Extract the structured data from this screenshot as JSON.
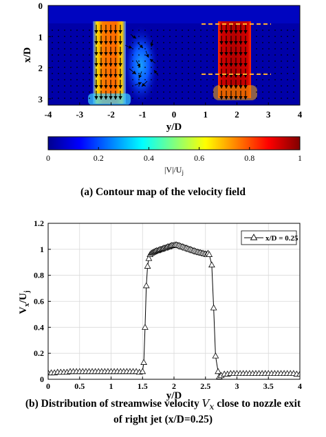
{
  "colors": {
    "jet_colormap": [
      "#00008f",
      "#0000ff",
      "#0080ff",
      "#00ffff",
      "#80ff80",
      "#ffff00",
      "#ff8000",
      "#ff0000",
      "#800000"
    ],
    "annotation_lines": "#ffb030",
    "series_line": "#000000"
  },
  "icons": {
    "series_marker": "triangle-marker-icon"
  },
  "chart_data": [
    {
      "type": "heatmap",
      "title": "",
      "xlabel": "y/D",
      "ylabel": "x/D",
      "xlim": [
        -4,
        4
      ],
      "ylim": [
        3.2,
        0
      ],
      "y_axis_inverted": true,
      "x_ticks": [
        "-4",
        "-3",
        "-2",
        "-1",
        "0",
        "1",
        "2",
        "3",
        "4"
      ],
      "y_ticks": [
        "0",
        "1",
        "2",
        "3"
      ],
      "colormap": "jet",
      "overlay": "velocity vectors",
      "left_jet": {
        "y_range": [
          -2.6,
          -1.55
        ],
        "x_range": [
          0.6,
          3.2
        ],
        "peak_speed": 0.8
      },
      "right_jet": {
        "y_range": [
          1.5,
          2.55
        ],
        "x_range": [
          0.6,
          3.05
        ],
        "peak_speed": 0.97
      },
      "annotation_lines_x": [
        0.6,
        2.25
      ],
      "colorbar": {
        "label": "|V|/U",
        "label_subscript": "j",
        "ticks": [
          "0",
          "0.2",
          "0.4",
          "0.6",
          "0.8",
          "1"
        ],
        "range": [
          0,
          1
        ]
      }
    },
    {
      "type": "line",
      "title": "",
      "xlabel": "y/D",
      "ylabel": "V",
      "ylabel_sub1": "x",
      "ylabel_mid": "/U",
      "ylabel_sub2": "j",
      "xlim": [
        0,
        4
      ],
      "ylim": [
        0,
        1.2
      ],
      "x_ticks": [
        "0",
        "0.5",
        "1",
        "1.5",
        "2",
        "2.5",
        "3",
        "3.5",
        "4"
      ],
      "y_ticks": [
        "0",
        "0.2",
        "0.4",
        "0.6",
        "0.8",
        "1",
        "1.2"
      ],
      "grid": true,
      "legend_position": "top-right",
      "series": [
        {
          "name": "x/D = 0.25",
          "marker": "triangle",
          "x": [
            0.0,
            0.05,
            0.1,
            0.15,
            0.2,
            0.25,
            0.3,
            0.35,
            0.4,
            0.45,
            0.5,
            0.55,
            0.6,
            0.65,
            0.7,
            0.75,
            0.8,
            0.85,
            0.9,
            0.95,
            1.0,
            1.05,
            1.1,
            1.15,
            1.2,
            1.25,
            1.3,
            1.35,
            1.4,
            1.45,
            1.5,
            1.52,
            1.54,
            1.56,
            1.58,
            1.6,
            1.62,
            1.64,
            1.66,
            1.68,
            1.7,
            1.72,
            1.74,
            1.76,
            1.78,
            1.8,
            1.82,
            1.84,
            1.86,
            1.88,
            1.9,
            1.92,
            1.94,
            1.96,
            1.98,
            2.0,
            2.02,
            2.04,
            2.06,
            2.08,
            2.1,
            2.12,
            2.14,
            2.16,
            2.18,
            2.2,
            2.22,
            2.24,
            2.26,
            2.28,
            2.3,
            2.32,
            2.34,
            2.36,
            2.38,
            2.4,
            2.42,
            2.44,
            2.46,
            2.48,
            2.5,
            2.52,
            2.54,
            2.56,
            2.6,
            2.63,
            2.66,
            2.7,
            2.72,
            2.75,
            2.8,
            2.85,
            2.9,
            2.95,
            3.0,
            3.05,
            3.1,
            3.15,
            3.2,
            3.25,
            3.3,
            3.35,
            3.4,
            3.45,
            3.5,
            3.55,
            3.6,
            3.65,
            3.7,
            3.75,
            3.8,
            3.85,
            3.9,
            3.95,
            4.0
          ],
          "y": [
            0.05,
            0.05,
            0.05,
            0.055,
            0.055,
            0.055,
            0.055,
            0.06,
            0.06,
            0.06,
            0.06,
            0.06,
            0.06,
            0.06,
            0.06,
            0.06,
            0.06,
            0.06,
            0.06,
            0.06,
            0.06,
            0.06,
            0.06,
            0.06,
            0.06,
            0.06,
            0.06,
            0.06,
            0.06,
            0.055,
            0.06,
            0.13,
            0.4,
            0.72,
            0.87,
            0.93,
            0.96,
            0.97,
            0.975,
            0.98,
            0.985,
            0.99,
            0.99,
            0.995,
            1.0,
            1.0,
            1.005,
            1.01,
            1.01,
            1.015,
            1.02,
            1.02,
            1.025,
            1.03,
            1.03,
            1.03,
            1.035,
            1.035,
            1.03,
            1.03,
            1.025,
            1.02,
            1.02,
            1.015,
            1.01,
            1.01,
            1.005,
            1.0,
            1.0,
            0.995,
            0.99,
            0.99,
            0.985,
            0.98,
            0.98,
            0.975,
            0.975,
            0.97,
            0.97,
            0.965,
            0.965,
            0.96,
            0.97,
            0.96,
            0.88,
            0.55,
            0.18,
            0.06,
            0.02,
            0.03,
            0.04,
            0.04,
            0.045,
            0.045,
            0.045,
            0.045,
            0.045,
            0.045,
            0.045,
            0.045,
            0.045,
            0.045,
            0.045,
            0.045,
            0.045,
            0.045,
            0.045,
            0.045,
            0.045,
            0.045,
            0.045,
            0.045,
            0.045,
            0.04,
            0.04
          ]
        }
      ]
    }
  ],
  "captions": {
    "a": "(a) Contour map of the velocity field",
    "b_part1": "(b) Distribution of streamwise velocity ",
    "b_var": "V",
    "b_var_sub": "x",
    "b_part2": " close to nozzle exit",
    "b_line2": "of right jet (x/D=0.25)"
  }
}
